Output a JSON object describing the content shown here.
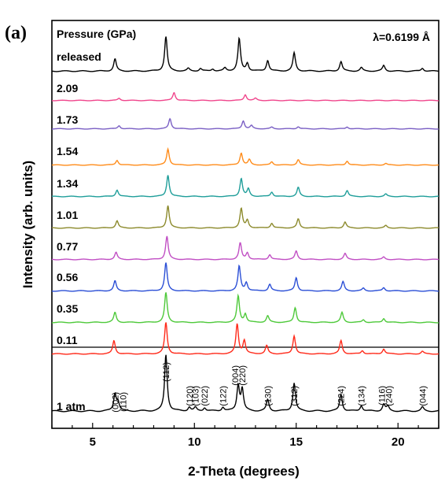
{
  "chart_data": {
    "type": "line",
    "panel_label": "(a)",
    "title": "",
    "xlabel": "2-Theta (degrees)",
    "ylabel": "Intensity (arb. units)",
    "xlim": [
      3.0,
      22.0
    ],
    "x_ticks": [
      5,
      10,
      15,
      20
    ],
    "y_ticks": [],
    "legend_title": "Pressure (GPa)",
    "annotation": "λ=0.6199 Å",
    "series": [
      {
        "name": "released",
        "color": "#000000",
        "peaks": [
          [
            6.1,
            0.28
          ],
          [
            8.6,
            0.8
          ],
          [
            9.7,
            0.06
          ],
          [
            10.3,
            0.06
          ],
          [
            10.9,
            0.05
          ],
          [
            11.5,
            0.07
          ],
          [
            12.2,
            0.75
          ],
          [
            12.6,
            0.18
          ],
          [
            13.6,
            0.25
          ],
          [
            14.9,
            0.42
          ],
          [
            17.2,
            0.22
          ],
          [
            18.2,
            0.08
          ],
          [
            19.3,
            0.13
          ],
          [
            21.2,
            0.07
          ]
        ]
      },
      {
        "name": "2.09",
        "color": "#f0468c",
        "peaks": [
          [
            6.3,
            0.08
          ],
          [
            9.0,
            0.3
          ],
          [
            12.5,
            0.22
          ],
          [
            13.0,
            0.08
          ]
        ]
      },
      {
        "name": "1.73",
        "color": "#7a5fc4",
        "peaks": [
          [
            6.3,
            0.12
          ],
          [
            8.8,
            0.38
          ],
          [
            12.4,
            0.3
          ],
          [
            12.8,
            0.12
          ],
          [
            13.8,
            0.06
          ],
          [
            15.1,
            0.08
          ],
          [
            17.5,
            0.07
          ]
        ]
      },
      {
        "name": "1.54",
        "color": "#ff8c1a",
        "peaks": [
          [
            6.2,
            0.18
          ],
          [
            8.7,
            0.6
          ],
          [
            12.3,
            0.45
          ],
          [
            12.7,
            0.2
          ],
          [
            13.8,
            0.12
          ],
          [
            15.1,
            0.2
          ],
          [
            17.5,
            0.15
          ],
          [
            19.4,
            0.06
          ]
        ]
      },
      {
        "name": "1.34",
        "color": "#1f9e9a",
        "peaks": [
          [
            6.2,
            0.22
          ],
          [
            8.7,
            0.72
          ],
          [
            12.3,
            0.6
          ],
          [
            12.65,
            0.25
          ],
          [
            13.8,
            0.15
          ],
          [
            15.1,
            0.3
          ],
          [
            17.5,
            0.2
          ],
          [
            19.4,
            0.08
          ]
        ]
      },
      {
        "name": "1.01",
        "color": "#8c8a2c",
        "peaks": [
          [
            6.2,
            0.24
          ],
          [
            8.7,
            0.75
          ],
          [
            12.3,
            0.65
          ],
          [
            12.6,
            0.25
          ],
          [
            13.8,
            0.16
          ],
          [
            15.1,
            0.3
          ],
          [
            17.4,
            0.2
          ],
          [
            19.4,
            0.08
          ]
        ]
      },
      {
        "name": "0.77",
        "color": "#c14fc4",
        "peaks": [
          [
            6.15,
            0.24
          ],
          [
            8.65,
            0.78
          ],
          [
            12.25,
            0.55
          ],
          [
            12.6,
            0.22
          ],
          [
            13.7,
            0.16
          ],
          [
            15.0,
            0.28
          ],
          [
            17.4,
            0.2
          ],
          [
            19.3,
            0.08
          ]
        ]
      },
      {
        "name": "0.56",
        "color": "#2b4fd6",
        "peaks": [
          [
            6.1,
            0.3
          ],
          [
            8.6,
            0.85
          ],
          [
            12.2,
            0.75
          ],
          [
            12.55,
            0.25
          ],
          [
            13.7,
            0.2
          ],
          [
            15.0,
            0.4
          ],
          [
            17.3,
            0.28
          ],
          [
            18.3,
            0.08
          ],
          [
            19.3,
            0.1
          ]
        ]
      },
      {
        "name": "0.35",
        "color": "#4ec93a",
        "peaks": [
          [
            6.1,
            0.3
          ],
          [
            8.6,
            0.9
          ],
          [
            12.15,
            0.8
          ],
          [
            12.5,
            0.25
          ],
          [
            13.6,
            0.2
          ],
          [
            14.95,
            0.45
          ],
          [
            17.25,
            0.3
          ],
          [
            18.3,
            0.08
          ],
          [
            19.3,
            0.12
          ]
        ]
      },
      {
        "name": "0.11",
        "color": "#ff2a1a",
        "peaks": [
          [
            6.05,
            0.4
          ],
          [
            8.6,
            0.95
          ],
          [
            12.1,
            0.9
          ],
          [
            12.45,
            0.4
          ],
          [
            13.55,
            0.25
          ],
          [
            14.9,
            0.55
          ],
          [
            17.2,
            0.4
          ],
          [
            18.25,
            0.1
          ],
          [
            19.3,
            0.15
          ],
          [
            21.2,
            0.08
          ]
        ]
      },
      {
        "name": "1 atm",
        "color": "#000000",
        "peaks": [
          [
            6.1,
            0.3
          ],
          [
            6.25,
            0.15
          ],
          [
            8.6,
            1.0
          ],
          [
            9.75,
            0.07
          ],
          [
            10.05,
            0.06
          ],
          [
            10.5,
            0.06
          ],
          [
            11.4,
            0.07
          ],
          [
            12.15,
            0.45
          ],
          [
            12.35,
            0.38
          ],
          [
            13.6,
            0.2
          ],
          [
            14.9,
            0.5
          ],
          [
            17.2,
            0.3
          ],
          [
            18.2,
            0.1
          ],
          [
            19.3,
            0.12
          ],
          [
            19.5,
            0.08
          ],
          [
            21.2,
            0.07
          ]
        ]
      }
    ],
    "hkl_labels": [
      {
        "hkl": "(002)",
        "x": 6.1
      },
      {
        "hkl": "(110)",
        "x": 6.5
      },
      {
        "hkl": "(112)",
        "x": 8.6
      },
      {
        "hkl": "(120)",
        "x": 9.75
      },
      {
        "hkl": "(103)",
        "x": 10.05
      },
      {
        "hkl": "(022)",
        "x": 10.5
      },
      {
        "hkl": "(122)",
        "x": 11.4
      },
      {
        "hkl": "(004)",
        "x": 12.0
      },
      {
        "hkl": "(220)",
        "x": 12.35
      },
      {
        "hkl": "(130)",
        "x": 13.6
      },
      {
        "hkl": "(312)",
        "x": 14.9
      },
      {
        "hkl": "(224)",
        "x": 17.2
      },
      {
        "hkl": "(134)",
        "x": 18.2
      },
      {
        "hkl": "(116)",
        "x": 19.2
      },
      {
        "hkl": "(240)",
        "x": 19.55
      },
      {
        "hkl": "(044)",
        "x": 21.2
      }
    ]
  }
}
